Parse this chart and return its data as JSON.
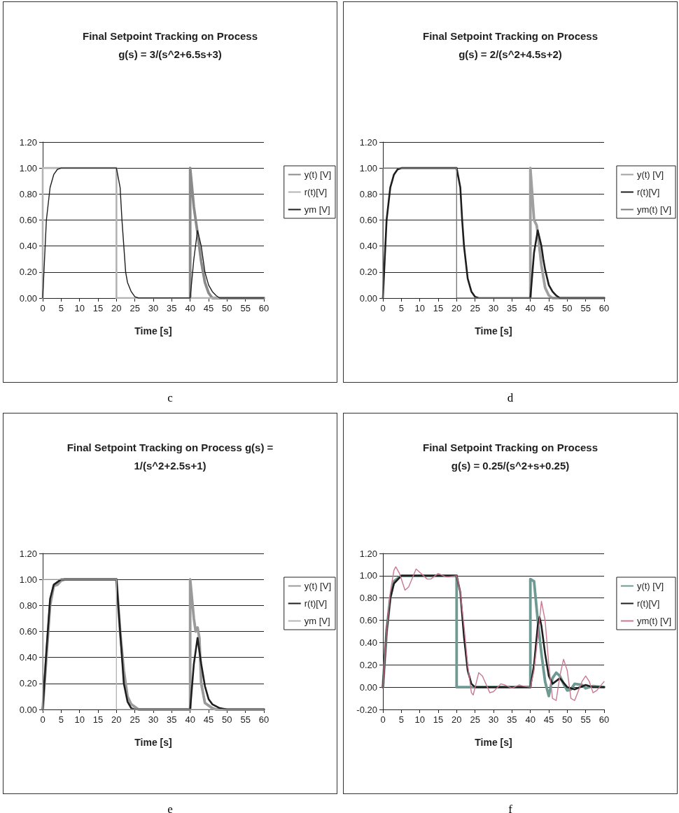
{
  "chart_data": [
    {
      "type": "line",
      "title": "Final Setpoint Tracking on Process\ng(s) = 3/(s^2+6.5s+3)",
      "xlabel": "Time [s]",
      "annotations": [
        "c"
      ],
      "legend": "right",
      "grid": "y",
      "marker": "none",
      "line_style": "solid",
      "xlim": [
        0,
        60
      ],
      "xticks": [
        0,
        5,
        10,
        15,
        20,
        25,
        30,
        35,
        40,
        45,
        50,
        55,
        60
      ],
      "ylim": [
        0,
        1.2
      ],
      "yticks": [
        {
          "value": 0,
          "label": "0.00"
        },
        {
          "value": 0.2,
          "label": "0.20"
        },
        {
          "value": 0.4,
          "label": "0.40"
        },
        {
          "value": 0.6,
          "label": "0.60"
        },
        {
          "value": 0.8,
          "label": "0.80"
        },
        {
          "value": 1,
          "label": "1.00"
        },
        {
          "value": 1.2,
          "label": "1.20"
        }
      ],
      "series": [
        {
          "name": "y(t) [V]",
          "color": "#8a8a8a",
          "x": [
            40,
            40,
            41,
            42,
            43,
            44,
            45,
            46,
            60
          ],
          "values": [
            0,
            1,
            0.7,
            0.5,
            0.28,
            0.12,
            0.04,
            0,
            0
          ]
        },
        {
          "name": "r(t)[V]",
          "color": "#b4b4b4",
          "x": [
            0,
            0,
            20,
            20,
            60
          ],
          "values": [
            0,
            1,
            1,
            0,
            0
          ]
        },
        {
          "name": "ym [V]",
          "color": "#1e1e1e",
          "x": [
            0,
            0.5,
            1,
            2,
            2.5,
            3,
            4,
            5,
            20,
            21,
            21.5,
            22,
            22.5,
            23,
            24,
            24.5,
            25,
            26,
            40,
            41,
            42,
            43,
            44,
            45,
            46,
            47,
            48,
            60
          ],
          "values": [
            0,
            0.3,
            0.6,
            0.85,
            0.9,
            0.95,
            0.99,
            1,
            1,
            0.85,
            0.6,
            0.4,
            0.2,
            0.12,
            0.05,
            0.03,
            0.01,
            0,
            0,
            0.3,
            0.52,
            0.4,
            0.2,
            0.1,
            0.05,
            0.02,
            0,
            0
          ]
        }
      ]
    },
    {
      "type": "line",
      "title": "Final Setpoint Tracking on Process\ng(s) = 2/(s^2+4.5s+2)",
      "xlabel": "Time [s]",
      "annotations": [
        "d"
      ],
      "legend": "right",
      "grid": "y",
      "marker": "none",
      "line_style": "solid",
      "xlim": [
        0,
        60
      ],
      "xticks": [
        0,
        5,
        10,
        15,
        20,
        25,
        30,
        35,
        40,
        45,
        50,
        55,
        60
      ],
      "ylim": [
        0,
        1.2
      ],
      "yticks": [
        {
          "value": 0,
          "label": "0.00"
        },
        {
          "value": 0.2,
          "label": "0.20"
        },
        {
          "value": 0.4,
          "label": "0.40"
        },
        {
          "value": 0.6,
          "label": "0.60"
        },
        {
          "value": 0.8,
          "label": "0.80"
        },
        {
          "value": 1,
          "label": "1.00"
        },
        {
          "value": 1.2,
          "label": "1.20"
        }
      ],
      "series": [
        {
          "name": "y(t) [V]",
          "color": "#a0a0a0",
          "x": [
            40,
            40,
            41,
            41.7,
            42,
            43,
            44,
            45,
            46,
            60
          ],
          "values": [
            0,
            1,
            0.6,
            0.56,
            0.5,
            0.25,
            0.08,
            0.02,
            0,
            0
          ]
        },
        {
          "name": "r(t)[V]",
          "color": "#1e1e1e",
          "x": [
            0,
            0.5,
            1,
            2,
            3,
            4,
            5,
            20,
            21,
            21.5,
            22,
            23,
            24,
            25,
            26,
            40,
            41,
            42,
            43,
            43.5,
            44,
            45,
            46,
            47,
            48,
            60
          ],
          "values": [
            0,
            0.3,
            0.6,
            0.85,
            0.95,
            0.99,
            1,
            1,
            0.85,
            0.6,
            0.4,
            0.15,
            0.05,
            0.01,
            0,
            0,
            0.35,
            0.52,
            0.4,
            0.3,
            0.22,
            0.1,
            0.05,
            0.02,
            0,
            0
          ]
        },
        {
          "name": "ym(t) [V]",
          "color": "#7a7a7a",
          "x": [
            0,
            0,
            20,
            20,
            60
          ],
          "values": [
            0,
            1,
            1,
            0,
            0
          ]
        }
      ]
    },
    {
      "type": "line",
      "title": "Final Setpoint Tracking on Process g(s) =\n1/(s^2+2.5s+1)",
      "xlabel": "Time [s]",
      "annotations": [
        "e"
      ],
      "legend": "right",
      "grid": "y",
      "marker": "none",
      "line_style": "solid",
      "xlim": [
        0,
        60
      ],
      "xticks": [
        0,
        5,
        10,
        15,
        20,
        25,
        30,
        35,
        40,
        45,
        50,
        55,
        60
      ],
      "ylim": [
        0,
        1.2
      ],
      "yticks": [
        {
          "value": 0,
          "label": "0.00"
        },
        {
          "value": 0.2,
          "label": "0.20"
        },
        {
          "value": 0.4,
          "label": "0.40"
        },
        {
          "value": 0.6,
          "label": "0.60"
        },
        {
          "value": 0.8,
          "label": "0.80"
        },
        {
          "value": 1,
          "label": "1.00"
        },
        {
          "value": 1.2,
          "label": "1.20"
        }
      ],
      "series": [
        {
          "name": "y(t) [V]",
          "color": "#9a9a9a",
          "x": [
            0,
            1,
            2,
            3,
            4,
            5,
            6,
            20,
            21,
            22,
            23,
            24,
            25,
            26,
            40,
            40,
            41,
            41.5,
            42,
            42.5,
            43,
            44,
            45,
            46,
            47,
            60
          ],
          "values": [
            0,
            0.4,
            0.8,
            0.95,
            0.96,
            0.99,
            1,
            1,
            0.6,
            0.3,
            0.1,
            0.04,
            0.02,
            0,
            0,
            1,
            0.7,
            0.6,
            0.63,
            0.55,
            0.2,
            0.05,
            0.03,
            0.01,
            0,
            0
          ]
        },
        {
          "name": "r(t)[V]",
          "color": "#1e1e1e",
          "x": [
            0,
            1,
            2,
            3,
            5,
            20,
            21,
            22,
            23,
            24,
            25,
            40,
            41,
            42,
            43,
            44,
            45,
            46,
            48,
            50,
            60
          ],
          "values": [
            0,
            0.45,
            0.85,
            0.96,
            1,
            1,
            0.6,
            0.2,
            0.06,
            0.01,
            0,
            0,
            0.35,
            0.55,
            0.35,
            0.18,
            0.08,
            0.04,
            0.01,
            0,
            0
          ]
        },
        {
          "name": "ym [V]",
          "color": "#b4b4b4",
          "x": [
            0,
            0,
            20,
            20,
            60
          ],
          "values": [
            0,
            1,
            1,
            0,
            0
          ]
        }
      ]
    },
    {
      "type": "line",
      "title": "Final Setpoint Tracking on Process\ng(s) = 0.25/(s^2+s+0.25)",
      "xlabel": "Time [s]",
      "annotations": [
        "f"
      ],
      "legend": "right",
      "grid": "y",
      "marker": "none",
      "line_style": "solid",
      "xlim": [
        0,
        60
      ],
      "xticks": [
        0,
        5,
        10,
        15,
        20,
        25,
        30,
        35,
        40,
        45,
        50,
        55,
        60
      ],
      "ylim": [
        -0.2,
        1.2
      ],
      "yticks": [
        {
          "value": -0.2,
          "label": "-0.20"
        },
        {
          "value": 0,
          "label": "0.00"
        },
        {
          "value": 0.2,
          "label": "0.20"
        },
        {
          "value": 0.4,
          "label": "0.40"
        },
        {
          "value": 0.6,
          "label": "0.60"
        },
        {
          "value": 0.8,
          "label": "0.80"
        },
        {
          "value": 1,
          "label": "1.00"
        },
        {
          "value": 1.2,
          "label": "1.20"
        }
      ],
      "series": [
        {
          "name": "y(t) [V]",
          "color": "#6f9a94",
          "x": [
            0,
            1,
            2,
            3,
            5,
            20,
            20,
            40,
            40,
            41,
            42,
            43,
            44,
            45,
            46,
            47,
            48,
            49,
            50,
            51,
            52,
            54,
            55,
            57,
            60
          ],
          "values": [
            0,
            0.5,
            0.8,
            0.95,
            1,
            1,
            0,
            0,
            0.97,
            0.95,
            0.6,
            0.3,
            0.05,
            -0.08,
            0.08,
            0.13,
            0.1,
            0.03,
            -0.03,
            -0.02,
            0.03,
            0.02,
            -0.01,
            0.01,
            0
          ]
        },
        {
          "name": "r(t)[V]",
          "color": "#1e1e1e",
          "x": [
            0,
            1,
            2,
            3,
            5,
            20,
            21,
            22,
            23,
            24,
            25,
            40,
            41,
            42,
            42.5,
            43,
            44,
            45,
            46,
            48,
            50,
            52,
            55,
            57,
            60
          ],
          "values": [
            0,
            0.5,
            0.8,
            0.93,
            1,
            1,
            0.85,
            0.45,
            0.15,
            0.03,
            0,
            0,
            0.2,
            0.55,
            0.63,
            0.55,
            0.3,
            0.1,
            0.03,
            0.08,
            0,
            -0.02,
            0.02,
            0,
            0
          ]
        },
        {
          "name": "ym(t) [V]",
          "color": "#c87890",
          "x": [
            0,
            1,
            2,
            3,
            3.5,
            4.5,
            6,
            7,
            9,
            10,
            12,
            13,
            15,
            17,
            18,
            20,
            21,
            22,
            23,
            24,
            24.5,
            26,
            27,
            29,
            30,
            32,
            33,
            35,
            37,
            38,
            40,
            41,
            42,
            43,
            44,
            45,
            46,
            47,
            48,
            49,
            50,
            51,
            52,
            54,
            55,
            56,
            57,
            58,
            60
          ],
          "values": [
            0,
            0.5,
            0.85,
            1.05,
            1.08,
            1.02,
            0.87,
            0.9,
            1.06,
            1.03,
            0.97,
            0.97,
            1.02,
            0.99,
            0.99,
            1,
            0.85,
            0.55,
            0.2,
            -0.05,
            -0.07,
            0.13,
            0.1,
            -0.05,
            -0.04,
            0.03,
            0.02,
            -0.01,
            0.02,
            0.01,
            0,
            0.15,
            0.45,
            0.77,
            0.6,
            0.2,
            -0.1,
            -0.12,
            0.1,
            0.25,
            0.15,
            -0.1,
            -0.12,
            0.05,
            0.1,
            0.05,
            -0.05,
            -0.03,
            0.05
          ]
        }
      ]
    }
  ]
}
